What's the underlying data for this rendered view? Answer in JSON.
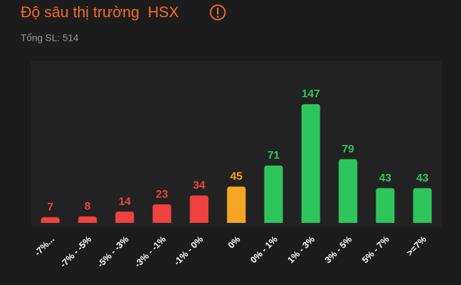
{
  "chart_data": {
    "type": "bar",
    "title": "Độ sâu thị trường  HSX",
    "subtitle": "Tổng SL: 514",
    "categories": [
      "-7%...",
      "-7% - -5%",
      "-5% - -3%",
      "-3% - -1%",
      "-1% - 0%",
      "0%",
      "0% - 1%",
      "1% - 3%",
      "3% - 5%",
      "5% - 7%",
      ">=7%"
    ],
    "values": [
      7,
      8,
      14,
      23,
      34,
      45,
      71,
      147,
      79,
      43,
      43
    ],
    "colors": [
      "#f0423f",
      "#f0423f",
      "#f0423f",
      "#f0423f",
      "#f0423f",
      "#f5a623",
      "#2fc55d",
      "#2fc55d",
      "#2fc55d",
      "#2fc55d",
      "#2fc55d"
    ]
  }
}
